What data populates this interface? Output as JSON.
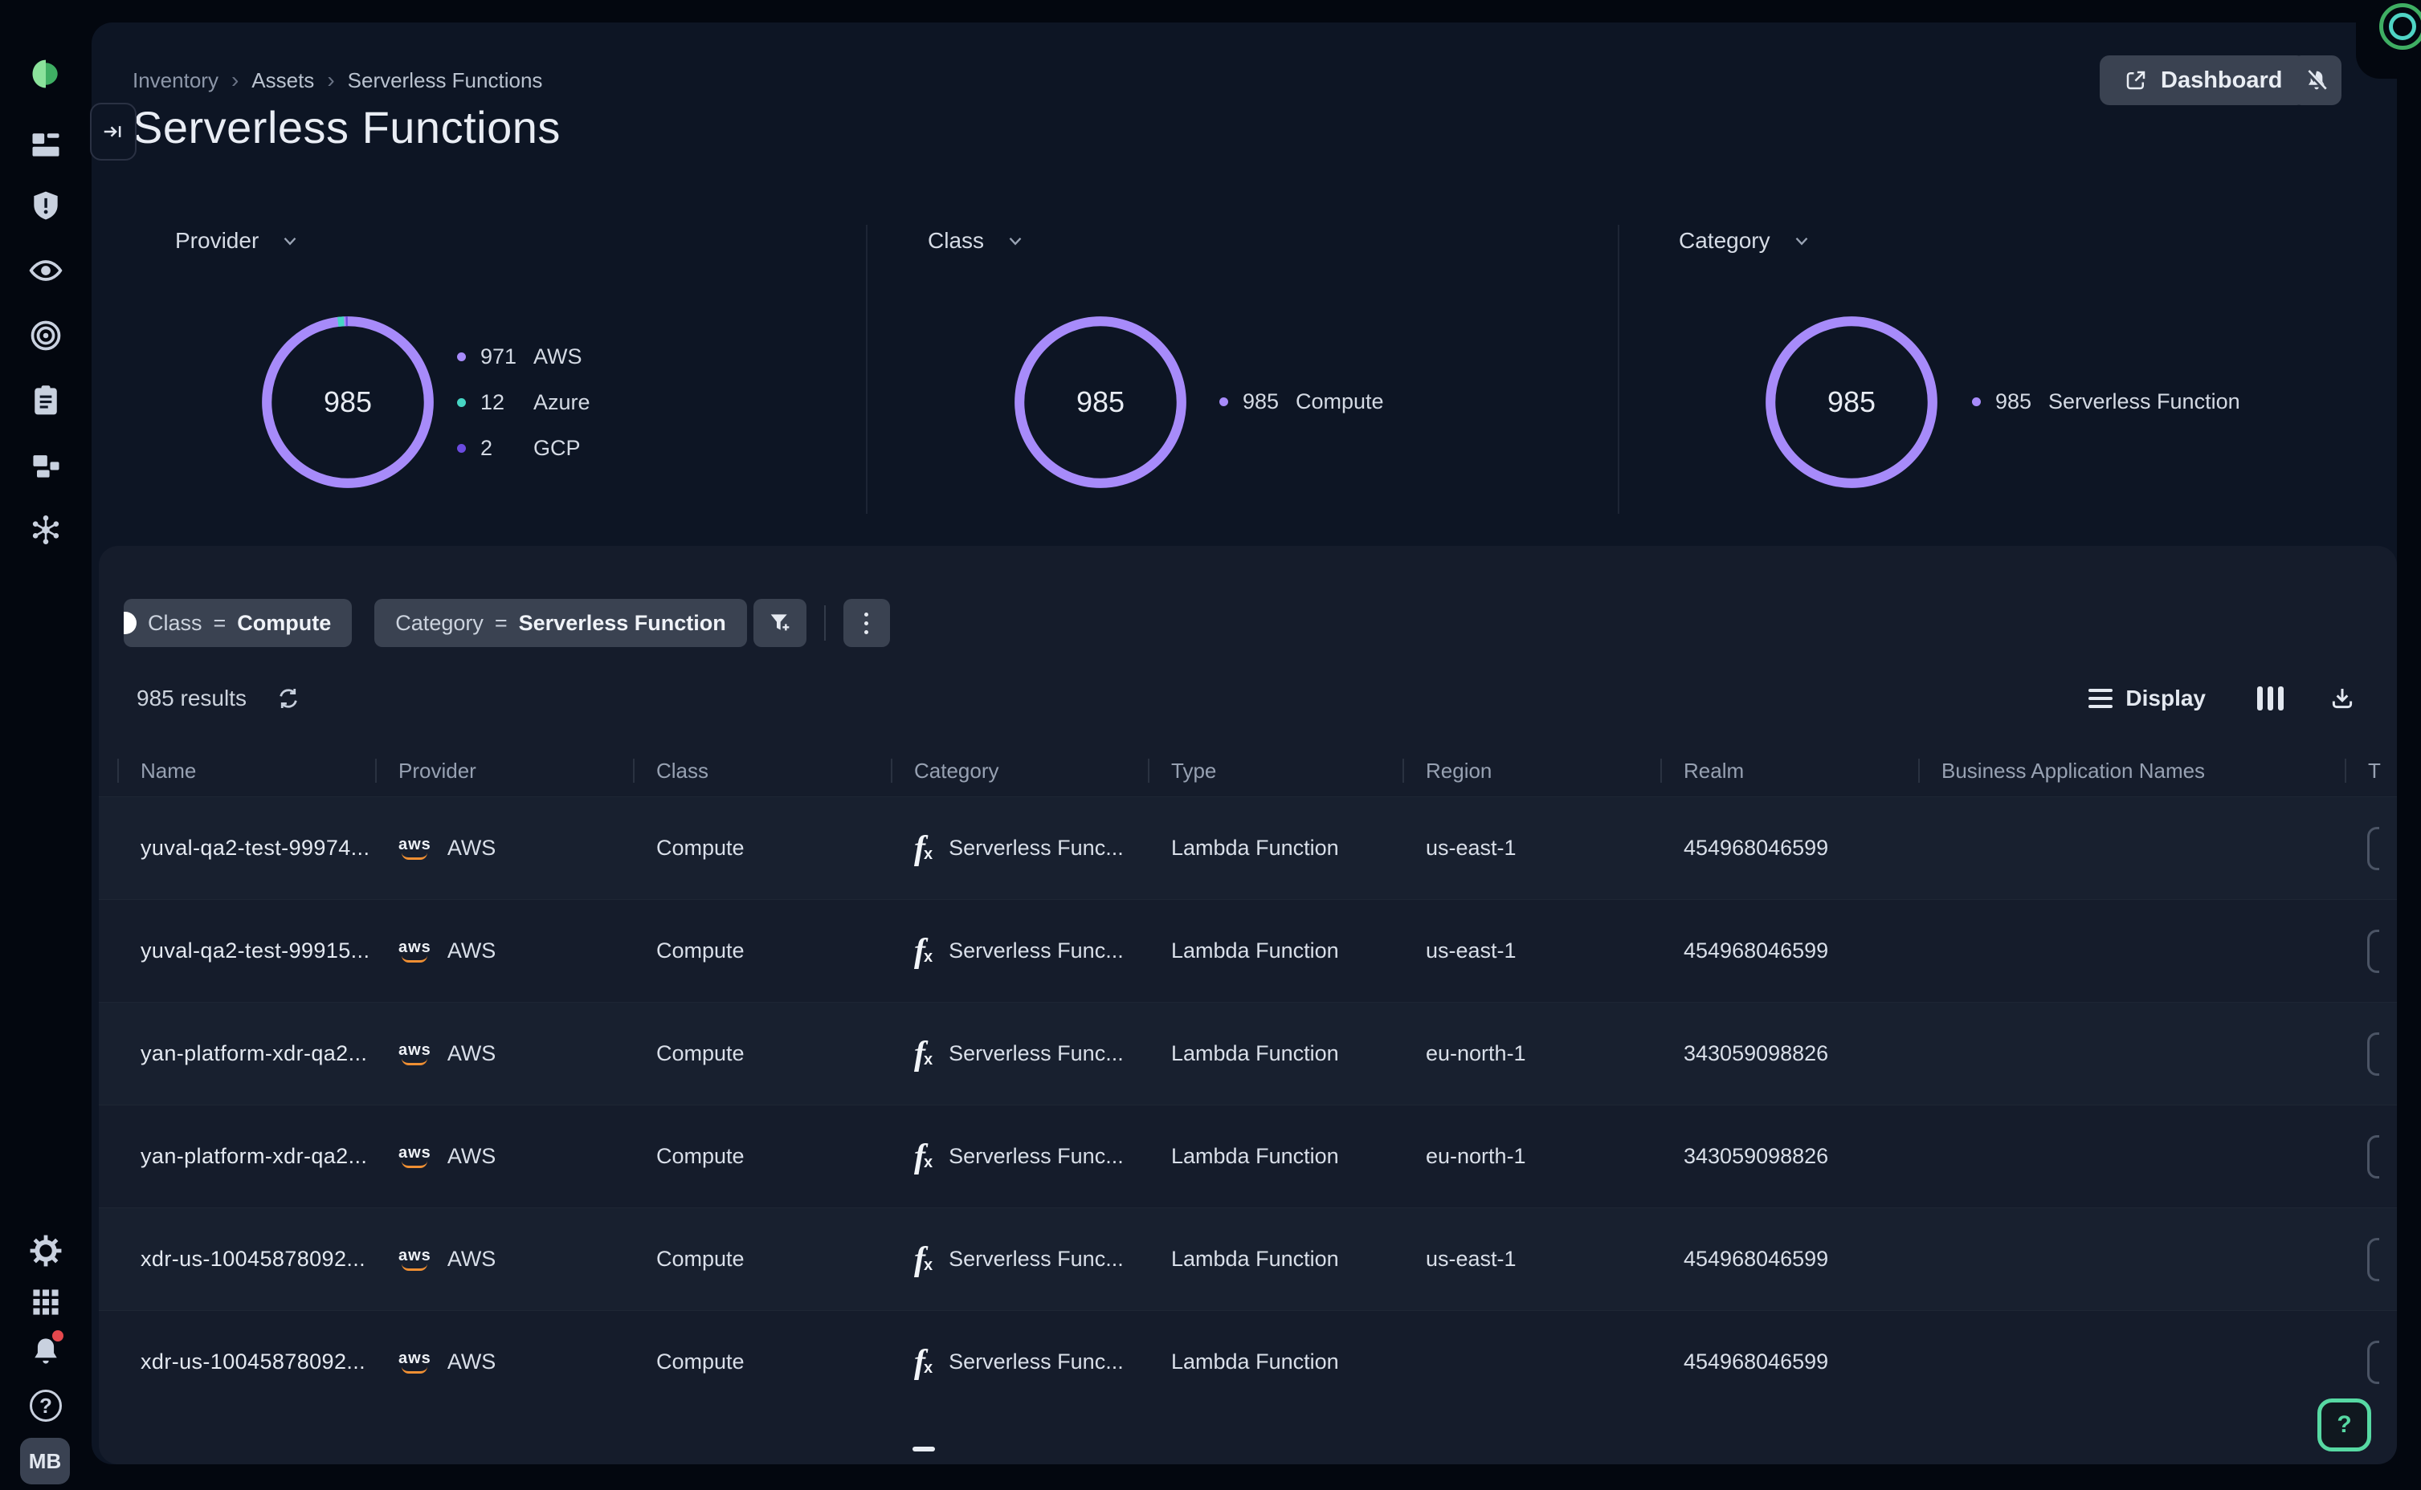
{
  "icons": {
    "aws_text": "aws",
    "fx_f": "f",
    "fx_x": "x",
    "chevron_right": "›",
    "question": "?"
  },
  "sidebar": {
    "top_items": [
      "orca-logo",
      "dashboards",
      "alerts",
      "discovery",
      "attack-paths",
      "compliance",
      "inventory",
      "attack-graph"
    ],
    "bottom_items": [
      "settings",
      "apps",
      "notifications",
      "help"
    ],
    "avatar_initials": "MB"
  },
  "header": {
    "breadcrumb": [
      "Inventory",
      "Assets",
      "Serverless Functions"
    ],
    "title": "Serverless Functions",
    "dashboard_button": "Dashboard"
  },
  "charts": [
    {
      "label": "Provider",
      "total": "985",
      "segments": [
        {
          "label": "AWS",
          "value": 971,
          "color": "#a78bfa"
        },
        {
          "label": "Azure",
          "value": 12,
          "color": "#46d5c3"
        },
        {
          "label": "GCP",
          "value": 2,
          "color": "#6b4be0"
        }
      ]
    },
    {
      "label": "Class",
      "total": "985",
      "segments": [
        {
          "label": "Compute",
          "value": 985,
          "color": "#a78bfa"
        }
      ]
    },
    {
      "label": "Category",
      "total": "985",
      "segments": [
        {
          "label": "Serverless Function",
          "value": 985,
          "color": "#a78bfa"
        }
      ]
    }
  ],
  "chart_data": [
    {
      "type": "pie",
      "title": "Provider",
      "total": 985,
      "categories": [
        "AWS",
        "Azure",
        "GCP"
      ],
      "values": [
        971,
        12,
        2
      ]
    },
    {
      "type": "pie",
      "title": "Class",
      "total": 985,
      "categories": [
        "Compute"
      ],
      "values": [
        985
      ]
    },
    {
      "type": "pie",
      "title": "Category",
      "total": 985,
      "categories": [
        "Serverless Function"
      ],
      "values": [
        985
      ]
    }
  ],
  "filters": {
    "chips": [
      {
        "field": "Class",
        "op": "=",
        "value": "Compute",
        "pinned": true
      },
      {
        "field": "Category",
        "op": "=",
        "value": "Serverless Function",
        "pinned": false
      }
    ]
  },
  "toolbar": {
    "results": "985 results",
    "display_label": "Display"
  },
  "table": {
    "columns": [
      "Name",
      "Provider",
      "Class",
      "Category",
      "Type",
      "Region",
      "Realm",
      "Business Application Names",
      "T"
    ],
    "rows": [
      {
        "name": "yuval-qa2-test-99974...",
        "provider": "AWS",
        "class": "Compute",
        "category": "Serverless Func...",
        "type": "Lambda Function",
        "region": "us-east-1",
        "realm": "454968046599",
        "ban": ""
      },
      {
        "name": "yuval-qa2-test-99915...",
        "provider": "AWS",
        "class": "Compute",
        "category": "Serverless Func...",
        "type": "Lambda Function",
        "region": "us-east-1",
        "realm": "454968046599",
        "ban": ""
      },
      {
        "name": "yan-platform-xdr-qa2...",
        "provider": "AWS",
        "class": "Compute",
        "category": "Serverless Func...",
        "type": "Lambda Function",
        "region": "eu-north-1",
        "realm": "343059098826",
        "ban": ""
      },
      {
        "name": "yan-platform-xdr-qa2...",
        "provider": "AWS",
        "class": "Compute",
        "category": "Serverless Func...",
        "type": "Lambda Function",
        "region": "eu-north-1",
        "realm": "343059098826",
        "ban": ""
      },
      {
        "name": "xdr-us-10045878092...",
        "provider": "AWS",
        "class": "Compute",
        "category": "Serverless Func...",
        "type": "Lambda Function",
        "region": "us-east-1",
        "realm": "454968046599",
        "ban": ""
      },
      {
        "name": "xdr-us-10045878092...",
        "provider": "AWS",
        "class": "Compute",
        "category": "Serverless Func...",
        "type": "Lambda Function",
        "region": "",
        "realm": "454968046599",
        "ban": ""
      }
    ]
  }
}
